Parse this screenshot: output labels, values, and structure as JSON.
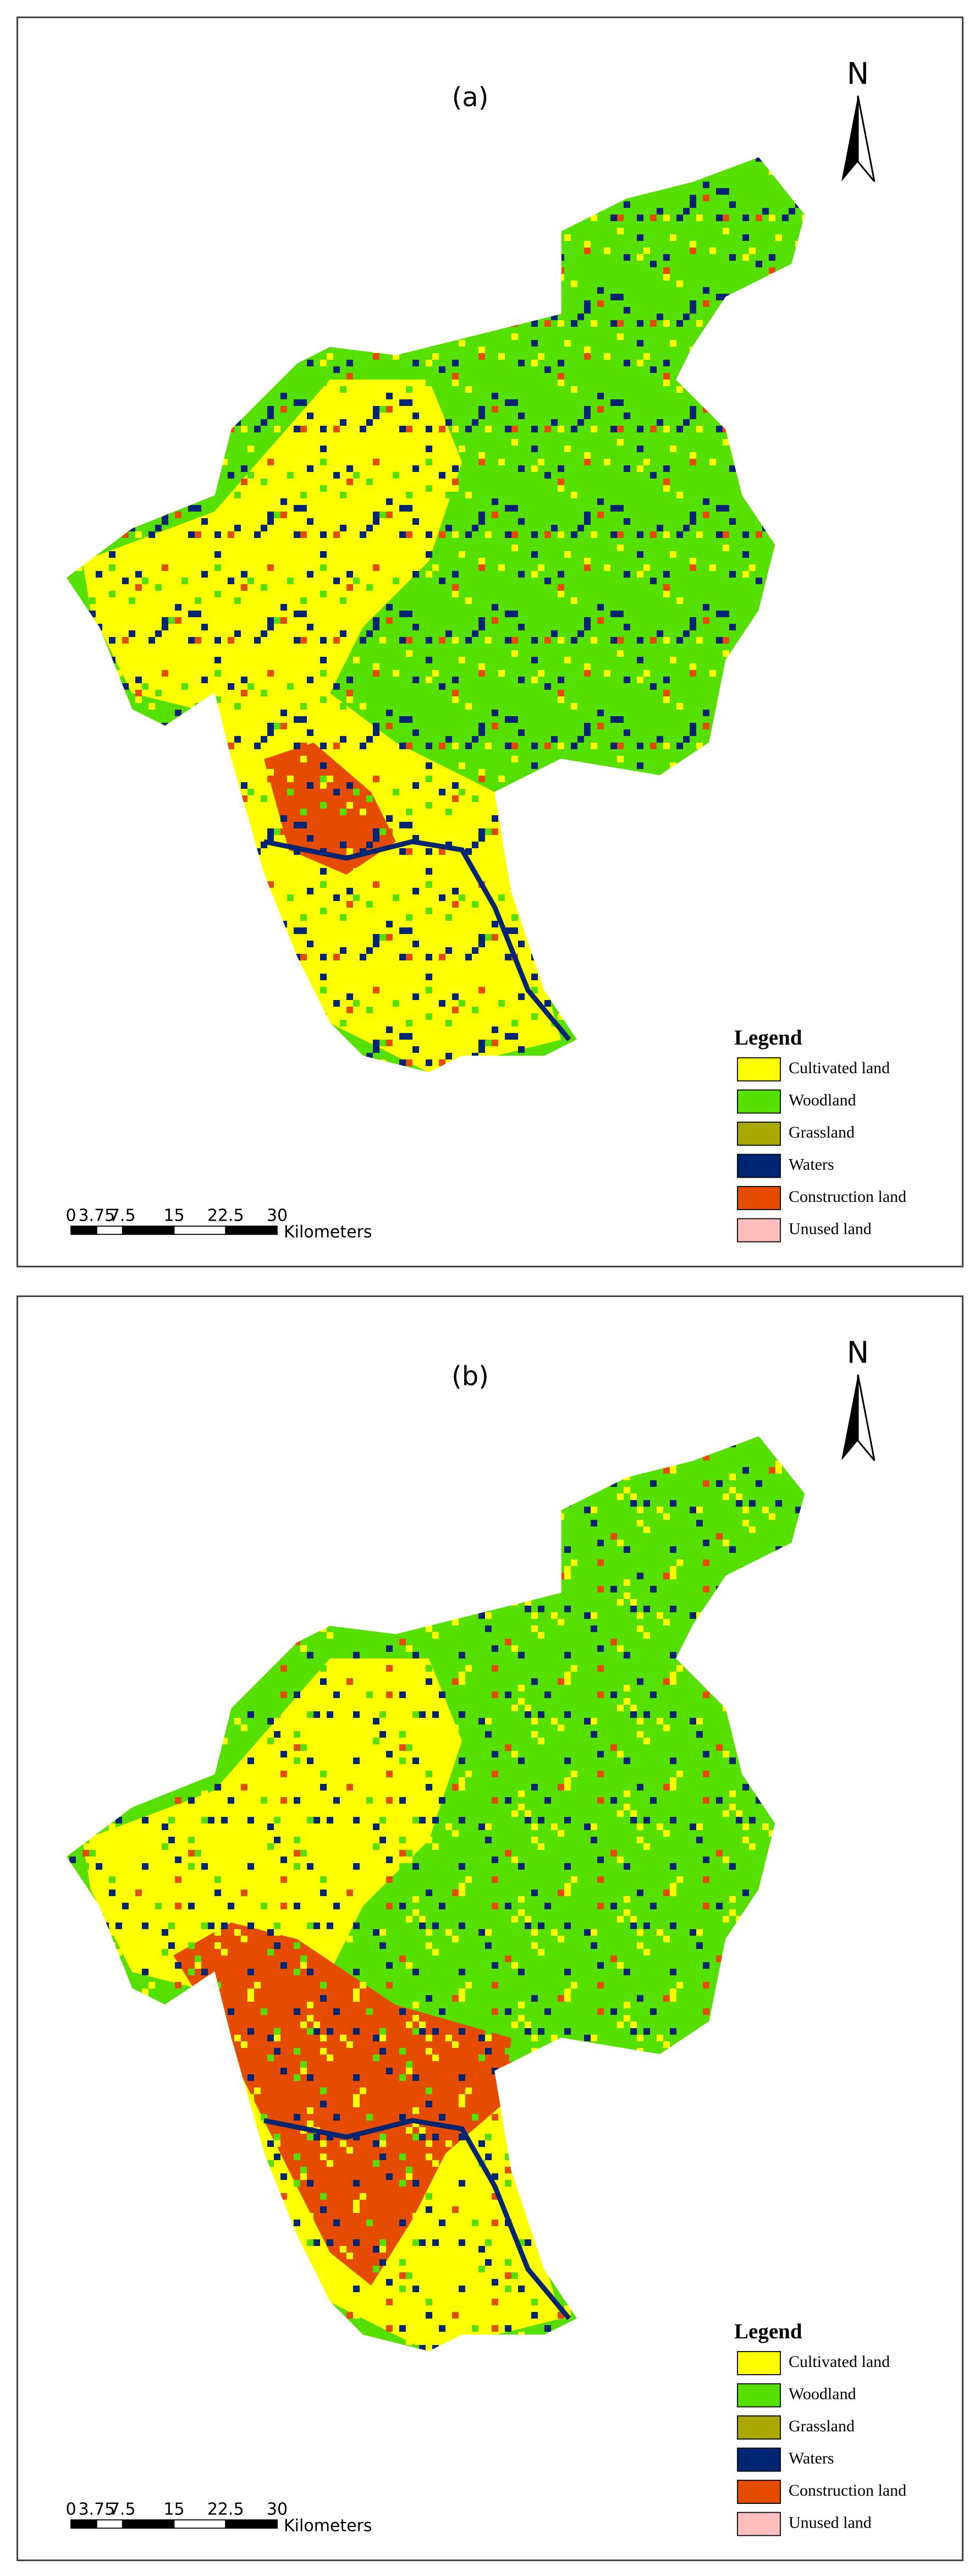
{
  "panels": [
    {
      "label": "(a)"
    },
    {
      "label": "(b)"
    }
  ],
  "north": "N",
  "legend": {
    "title": "Legend",
    "items": [
      {
        "name": "Cultivated land",
        "color": "#ffff00"
      },
      {
        "name": "Woodland",
        "color": "#55e000"
      },
      {
        "name": "Grassland",
        "color": "#a8a800"
      },
      {
        "name": "Waters",
        "color": "#002673"
      },
      {
        "name": "Construction land",
        "color": "#e64c00"
      },
      {
        "name": "Unused land",
        "color": "#ffbebe"
      }
    ]
  },
  "scale_bar": {
    "ticks": [
      "0",
      "3.75",
      "7.5",
      "15",
      "22.5",
      "30"
    ],
    "unit": "Kilometers"
  }
}
